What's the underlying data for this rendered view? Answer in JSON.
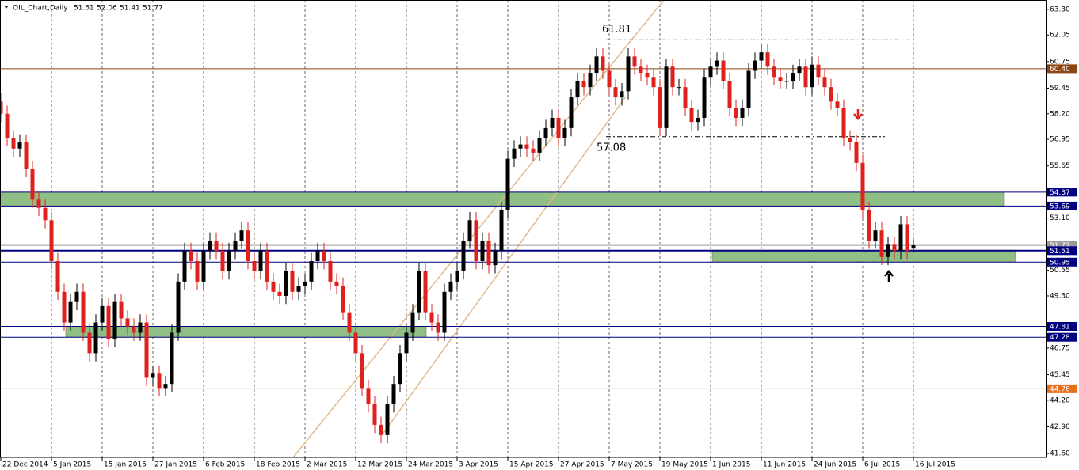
{
  "chart_data": {
    "type": "candlestick",
    "title": "OIL_Chart,Daily",
    "categories": [
      "22 Dec 2014",
      null,
      null,
      null,
      null,
      null,
      null,
      null,
      "5 Jan 2015",
      null,
      null,
      null,
      null,
      null,
      null,
      null,
      "15 Jan 2015",
      null,
      null,
      null,
      null,
      null,
      null,
      null,
      "27 Jan 2015",
      null,
      null,
      null,
      null,
      null,
      null,
      null,
      "6 Feb 2015",
      null,
      null,
      null,
      null,
      null,
      null,
      null,
      "18 Feb 2015",
      null,
      null,
      null,
      null,
      null,
      null,
      null,
      "2 Mar 2015",
      null,
      null,
      null,
      null,
      null,
      null,
      null,
      "12 Mar 2015",
      null,
      null,
      null,
      null,
      null,
      null,
      null,
      "24 Mar 2015",
      null,
      null,
      null,
      null,
      null,
      null,
      null,
      "3 Apr 2015",
      null,
      null,
      null,
      null,
      null,
      null,
      null,
      "15 Apr 2015",
      null,
      null,
      null,
      null,
      null,
      null,
      null,
      "27 Apr 2015",
      null,
      null,
      null,
      null,
      null,
      null,
      null,
      "7 May 2015",
      null,
      null,
      null,
      null,
      null,
      null,
      null,
      "19 May 2015",
      null,
      null,
      null,
      null,
      null,
      null,
      null,
      "1 Jun 2015",
      null,
      null,
      null,
      null,
      null,
      null,
      null,
      "11 Jun 2015",
      null,
      null,
      null,
      null,
      null,
      null,
      null,
      "24 Jun 2015",
      null,
      null,
      null,
      null,
      null,
      null,
      null,
      "6 Jul 2015",
      null,
      null,
      null,
      null,
      null,
      null,
      null,
      "16 Jul 2015"
    ],
    "open": [
      58.8,
      58.2,
      57.0,
      56.5,
      56.8,
      55.5,
      54.0,
      53.6,
      53.0,
      51.0,
      49.5,
      48.0,
      49.0,
      49.5,
      47.5,
      46.5,
      48.0,
      48.8,
      47.2,
      49.0,
      48.2,
      47.8,
      47.5,
      48.0,
      45.3,
      45.5,
      44.8,
      45.0,
      47.5,
      50.0,
      51.5,
      51.0,
      50.0,
      51.5,
      52.0,
      51.5,
      50.5,
      51.5,
      52.0,
      52.5,
      51.0,
      50.5,
      51.5,
      50.0,
      49.5,
      49.3,
      50.5,
      49.5,
      49.8,
      50.0,
      51.0,
      51.5,
      51.0,
      50.0,
      49.8,
      48.5,
      47.5,
      46.5,
      44.8,
      44.0,
      43.0,
      42.5,
      44.0,
      45.0,
      46.5,
      47.5,
      48.5,
      50.5,
      48.5,
      48.0,
      47.5,
      49.5,
      50.0,
      50.5,
      52.0,
      53.0,
      51.0,
      52.0,
      50.8,
      51.5,
      53.5,
      56.0,
      56.5,
      56.7,
      56.5,
      56.3,
      57.0,
      57.5,
      58.0,
      57.0,
      57.5,
      59.0,
      59.8,
      59.5,
      60.2,
      61.0,
      60.3,
      59.5,
      59.0,
      59.3,
      61.0,
      60.5,
      60.2,
      60.0,
      59.5,
      57.5,
      60.5,
      59.5,
      59.5,
      58.5,
      57.8,
      58.0,
      60.0,
      60.5,
      60.8,
      59.8,
      58.5,
      58.0,
      58.5,
      60.3,
      60.8,
      61.2,
      60.5,
      60.0,
      59.8,
      59.8,
      60.2,
      60.5,
      59.5,
      60.6,
      60.0,
      59.5,
      58.8,
      58.5,
      57.0,
      56.8,
      55.8,
      53.5,
      52.0,
      52.5,
      51.2,
      51.8,
      51.5,
      52.8,
      51.61
    ],
    "high": [
      59.2,
      58.6,
      57.4,
      57.2,
      57.2,
      55.9,
      54.4,
      54.0,
      53.4,
      51.4,
      49.9,
      49.4,
      49.9,
      49.9,
      47.9,
      48.4,
      49.2,
      49.2,
      49.4,
      49.4,
      48.6,
      48.2,
      48.4,
      48.4,
      45.9,
      45.9,
      45.4,
      47.9,
      50.4,
      51.9,
      51.9,
      51.4,
      51.9,
      52.4,
      52.4,
      51.9,
      51.9,
      52.4,
      52.9,
      52.9,
      51.4,
      51.9,
      51.9,
      50.4,
      49.9,
      50.9,
      50.9,
      50.2,
      50.4,
      51.4,
      51.9,
      51.9,
      51.4,
      50.4,
      50.2,
      48.9,
      47.9,
      46.9,
      45.2,
      44.4,
      43.4,
      44.4,
      45.4,
      46.9,
      47.9,
      48.9,
      50.9,
      50.9,
      48.9,
      48.4,
      49.9,
      50.4,
      50.9,
      52.4,
      53.4,
      53.4,
      52.4,
      52.4,
      51.9,
      53.9,
      56.4,
      56.9,
      57.1,
      57.1,
      56.9,
      57.4,
      57.9,
      58.4,
      58.4,
      57.9,
      59.4,
      60.2,
      60.2,
      60.6,
      61.4,
      61.4,
      60.7,
      59.9,
      59.7,
      61.4,
      61.4,
      60.9,
      60.6,
      60.4,
      59.9,
      60.9,
      60.9,
      59.9,
      59.9,
      58.9,
      58.4,
      60.4,
      60.9,
      61.2,
      61.2,
      60.2,
      58.9,
      58.9,
      60.7,
      61.2,
      61.6,
      61.6,
      60.9,
      60.4,
      60.2,
      60.6,
      60.9,
      60.9,
      61.0,
      61.0,
      60.4,
      59.9,
      59.2,
      58.9,
      57.4,
      57.2,
      56.2,
      53.9,
      52.9,
      52.9,
      52.2,
      52.2,
      53.2,
      53.2,
      52.06
    ],
    "low": [
      57.8,
      56.6,
      56.1,
      56.1,
      55.1,
      53.6,
      53.2,
      52.6,
      50.6,
      49.1,
      47.6,
      47.6,
      48.6,
      47.1,
      46.1,
      46.1,
      47.6,
      46.8,
      46.8,
      47.8,
      47.4,
      47.1,
      47.1,
      44.9,
      44.9,
      44.4,
      44.4,
      44.6,
      47.1,
      49.6,
      50.6,
      49.6,
      49.6,
      51.1,
      51.1,
      50.1,
      50.1,
      51.1,
      51.6,
      50.6,
      50.1,
      50.1,
      49.6,
      49.1,
      48.9,
      48.9,
      49.1,
      49.1,
      49.4,
      49.6,
      50.6,
      50.6,
      49.6,
      49.4,
      48.1,
      47.1,
      46.1,
      44.4,
      43.6,
      42.6,
      42.1,
      42.1,
      43.6,
      44.6,
      46.1,
      47.1,
      48.1,
      48.1,
      47.6,
      47.1,
      47.1,
      49.1,
      49.6,
      50.1,
      51.6,
      50.6,
      50.6,
      50.4,
      50.4,
      51.1,
      53.1,
      55.6,
      56.1,
      56.1,
      55.9,
      55.9,
      56.6,
      57.1,
      56.6,
      56.6,
      57.1,
      58.6,
      59.1,
      59.1,
      59.8,
      59.9,
      59.1,
      58.6,
      58.6,
      58.9,
      60.1,
      59.8,
      59.6,
      59.1,
      57.1,
      57.1,
      59.1,
      59.1,
      58.1,
      57.4,
      57.4,
      57.6,
      59.6,
      60.1,
      59.4,
      58.1,
      57.6,
      57.6,
      58.1,
      59.9,
      60.4,
      60.1,
      59.6,
      59.4,
      59.4,
      59.4,
      59.8,
      59.1,
      59.1,
      59.6,
      59.1,
      58.4,
      58.1,
      56.6,
      56.4,
      55.4,
      53.1,
      51.6,
      51.6,
      50.8,
      50.8,
      51.1,
      51.1,
      51.1,
      51.41
    ],
    "close": [
      58.2,
      57.0,
      56.5,
      56.8,
      55.5,
      54.0,
      53.6,
      53.0,
      51.0,
      49.5,
      48.0,
      49.0,
      49.5,
      47.5,
      46.5,
      48.0,
      48.8,
      47.2,
      49.0,
      48.2,
      47.8,
      47.5,
      48.0,
      45.3,
      45.5,
      44.8,
      45.0,
      47.5,
      50.0,
      51.5,
      51.0,
      50.0,
      51.5,
      52.0,
      51.5,
      50.5,
      51.5,
      52.0,
      52.5,
      51.0,
      50.5,
      51.5,
      50.0,
      49.5,
      49.3,
      50.5,
      49.5,
      49.8,
      50.0,
      51.0,
      51.5,
      51.0,
      50.0,
      49.8,
      48.5,
      47.5,
      46.5,
      44.8,
      44.0,
      43.0,
      42.5,
      44.0,
      45.0,
      46.5,
      47.5,
      48.5,
      50.5,
      48.5,
      48.0,
      47.5,
      49.5,
      50.0,
      50.5,
      52.0,
      53.0,
      51.0,
      52.0,
      50.8,
      51.5,
      53.5,
      56.0,
      56.5,
      56.7,
      56.5,
      56.3,
      57.0,
      57.5,
      58.0,
      57.0,
      57.5,
      59.0,
      59.8,
      59.5,
      60.2,
      61.0,
      60.3,
      59.5,
      59.0,
      59.3,
      61.0,
      60.5,
      60.2,
      60.0,
      59.5,
      57.5,
      60.5,
      59.5,
      59.5,
      58.5,
      57.8,
      58.0,
      60.0,
      60.5,
      60.8,
      59.8,
      58.5,
      58.0,
      58.5,
      60.3,
      60.8,
      61.2,
      60.5,
      60.0,
      59.8,
      59.8,
      60.2,
      60.5,
      59.5,
      60.6,
      60.0,
      59.5,
      58.8,
      58.5,
      57.0,
      56.8,
      55.8,
      53.5,
      52.0,
      52.5,
      51.2,
      51.8,
      51.5,
      52.8,
      51.5,
      51.77
    ],
    "up_color": "#000000",
    "down_color": "#e0201c",
    "ylim": [
      41.41,
      63.76
    ],
    "yticks": [
      {
        "value": 63.3,
        "label": "63.30"
      },
      62.05,
      60.75,
      59.45,
      {
        "value": 58.2,
        "label": "58.20"
      },
      56.95,
      55.65,
      {
        "value": 53.1,
        "label": "53.10"
      },
      50.55,
      {
        "value": 49.3,
        "label": "49.30"
      },
      46.75,
      45.45,
      {
        "value": 44.2,
        "label": "44.20"
      },
      {
        "value": 42.9,
        "label": "42.90"
      },
      {
        "value": 41.6,
        "label": "41.60"
      }
    ],
    "levels": [
      {
        "value": 60.4,
        "label": "60.40",
        "color": "#8b4513"
      },
      {
        "value": 54.37,
        "label": "54.37",
        "color": "#000080"
      },
      {
        "value": 53.69,
        "label": "53.69",
        "color": "#000080"
      },
      {
        "value": 51.77,
        "label": "51.77",
        "color": "#9a9a9a"
      },
      {
        "value": 51.51,
        "label": "51.51",
        "color": "#000080"
      },
      {
        "value": 50.95,
        "label": "50.95",
        "color": "#000080"
      },
      {
        "value": 47.81,
        "label": "47.81",
        "color": "#000080"
      },
      {
        "value": 47.28,
        "label": "47.28",
        "color": "#000080"
      },
      {
        "value": 44.76,
        "label": "44.76",
        "color": "#e8701a"
      }
    ],
    "zone_color": "#8fbf84",
    "annotations": [
      61.81,
      57.08
    ]
  }
}
